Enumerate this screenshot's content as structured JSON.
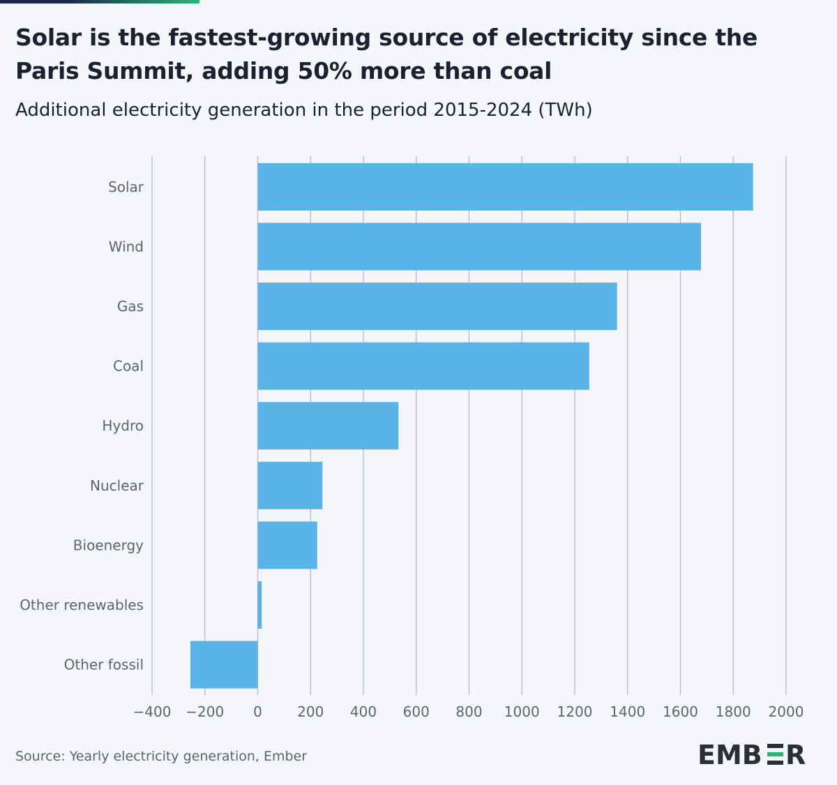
{
  "header": {
    "title": "Solar is the fastest-growing source of electricity since the Paris Summit, adding 50% more than coal",
    "subtitle": "Additional electricity generation in the period 2015-2024 (TWh)"
  },
  "footer": {
    "source": "Source: Yearly electricity generation, Ember",
    "logo_text": "EMBER"
  },
  "colors": {
    "bar": "#5bb4e8",
    "grid": "#aeb6c8",
    "label": "#5a6475",
    "accent_green": "#2bb673",
    "navy": "#1c2a4a"
  },
  "chart_data": {
    "type": "bar",
    "orientation": "horizontal",
    "title": "Solar is the fastest-growing source of electricity since the Paris Summit, adding 50% more than coal",
    "subtitle": "Additional electricity generation in the period 2015-2024 (TWh)",
    "xlabel": "",
    "ylabel": "",
    "categories": [
      "Solar",
      "Wind",
      "Gas",
      "Coal",
      "Hydro",
      "Nuclear",
      "Bioenergy",
      "Other renewables",
      "Other fossil"
    ],
    "values": [
      1875,
      1678,
      1360,
      1255,
      533,
      245,
      225,
      15,
      -255
    ],
    "xlim": [
      -400,
      2000
    ],
    "xticks": [
      -400,
      -200,
      0,
      200,
      400,
      600,
      800,
      1000,
      1200,
      1400,
      1600,
      1800,
      2000
    ],
    "xtick_labels": [
      "−400",
      "−200",
      "0",
      "200",
      "400",
      "600",
      "800",
      "1000",
      "1200",
      "1400",
      "1600",
      "1800",
      "2000"
    ],
    "grid": true,
    "legend": "none"
  }
}
